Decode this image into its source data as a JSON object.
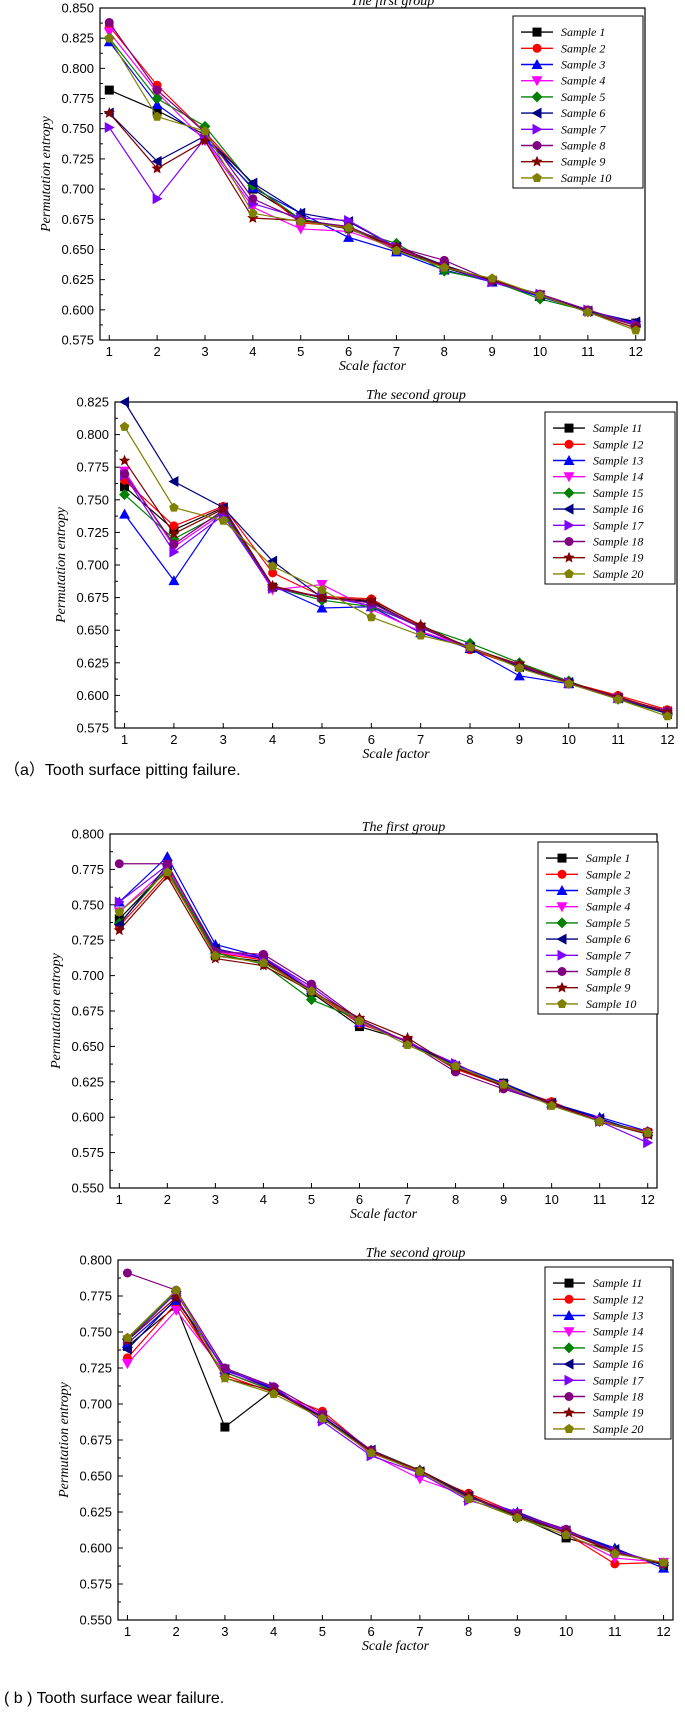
{
  "captions": {
    "a": "（a）Tooth surface pitting failure.",
    "b": "( b ) Tooth surface wear failure."
  },
  "series_colors": [
    "#000000",
    "#ff0000",
    "#0000ff",
    "#ff00ff",
    "#008000",
    "#000080",
    "#8000ff",
    "#800080",
    "#800000",
    "#808000"
  ],
  "series_markers": [
    "square",
    "circle",
    "triangle-up",
    "triangle-down",
    "diamond",
    "triangle-left",
    "triangle-right",
    "circle",
    "star",
    "pentagon"
  ],
  "chart_data": [
    {
      "type": "line",
      "title": "The first group",
      "xlabel": "Scale factor",
      "ylabel": "Permutation entropy",
      "x": [
        1,
        2,
        3,
        4,
        5,
        6,
        7,
        8,
        9,
        10,
        11,
        12
      ],
      "ylim": [
        0.575,
        0.85
      ],
      "yticks": [
        "0.575",
        "0.600",
        "0.625",
        "0.650",
        "0.675",
        "0.700",
        "0.725",
        "0.750",
        "0.775",
        "0.800",
        "0.825",
        "0.850"
      ],
      "xticks": [
        "1",
        "2",
        "3",
        "4",
        "5",
        "6",
        "7",
        "8",
        "9",
        "10",
        "11",
        "12"
      ],
      "legend_position": "top-right",
      "series": [
        {
          "name": "Sample 1",
          "values": [
            0.782,
            0.765,
            0.745,
            0.7,
            0.675,
            0.668,
            0.65,
            0.635,
            0.623,
            0.611,
            0.599,
            0.589
          ]
        },
        {
          "name": "Sample 2",
          "values": [
            0.835,
            0.786,
            0.747,
            0.704,
            0.672,
            0.669,
            0.651,
            0.636,
            0.623,
            0.612,
            0.599,
            0.588
          ]
        },
        {
          "name": "Sample 3",
          "values": [
            0.822,
            0.77,
            0.742,
            0.701,
            0.68,
            0.66,
            0.648,
            0.633,
            0.623,
            0.611,
            0.599,
            0.589
          ]
        },
        {
          "name": "Sample 4",
          "values": [
            0.83,
            0.78,
            0.74,
            0.685,
            0.667,
            0.665,
            0.651,
            0.636,
            0.623,
            0.612,
            0.598,
            0.587
          ]
        },
        {
          "name": "Sample 5",
          "values": [
            0.825,
            0.775,
            0.752,
            0.703,
            0.675,
            0.667,
            0.655,
            0.632,
            0.624,
            0.609,
            0.599,
            0.587
          ]
        },
        {
          "name": "Sample 6",
          "values": [
            0.763,
            0.723,
            0.744,
            0.705,
            0.68,
            0.673,
            0.652,
            0.637,
            0.624,
            0.612,
            0.599,
            0.59
          ]
        },
        {
          "name": "Sample 7",
          "values": [
            0.751,
            0.692,
            0.742,
            0.688,
            0.676,
            0.674,
            0.652,
            0.636,
            0.623,
            0.613,
            0.6,
            0.588
          ]
        },
        {
          "name": "Sample 8",
          "values": [
            0.838,
            0.782,
            0.747,
            0.692,
            0.674,
            0.669,
            0.652,
            0.641,
            0.624,
            0.613,
            0.6,
            0.587
          ]
        },
        {
          "name": "Sample 9",
          "values": [
            0.763,
            0.717,
            0.74,
            0.676,
            0.674,
            0.667,
            0.652,
            0.636,
            0.625,
            0.612,
            0.598,
            0.585
          ]
        },
        {
          "name": "Sample 10",
          "values": [
            0.825,
            0.76,
            0.748,
            0.68,
            0.673,
            0.668,
            0.649,
            0.635,
            0.626,
            0.612,
            0.598,
            0.583
          ]
        }
      ]
    },
    {
      "type": "line",
      "title": "The second group",
      "xlabel": "Scale factor",
      "ylabel": "Permutation entropy",
      "x": [
        1,
        2,
        3,
        4,
        5,
        6,
        7,
        8,
        9,
        10,
        11,
        12
      ],
      "ylim": [
        0.575,
        0.825
      ],
      "yticks": [
        "0.575",
        "0.600",
        "0.625",
        "0.650",
        "0.675",
        "0.700",
        "0.725",
        "0.750",
        "0.775",
        "0.800",
        "0.825"
      ],
      "xticks": [
        "1",
        "2",
        "3",
        "4",
        "5",
        "6",
        "7",
        "8",
        "9",
        "10",
        "11",
        "12"
      ],
      "legend_position": "top-right",
      "series": [
        {
          "name": "Sample 11",
          "values": [
            0.76,
            0.727,
            0.744,
            0.683,
            0.675,
            0.672,
            0.652,
            0.636,
            0.622,
            0.609,
            0.598,
            0.588
          ]
        },
        {
          "name": "Sample 12",
          "values": [
            0.765,
            0.73,
            0.745,
            0.694,
            0.676,
            0.674,
            0.653,
            0.635,
            0.622,
            0.61,
            0.6,
            0.589
          ]
        },
        {
          "name": "Sample 13",
          "values": [
            0.739,
            0.688,
            0.744,
            0.684,
            0.667,
            0.668,
            0.648,
            0.636,
            0.615,
            0.609,
            0.598,
            0.588
          ]
        },
        {
          "name": "Sample 14",
          "values": [
            0.772,
            0.714,
            0.74,
            0.681,
            0.685,
            0.666,
            0.649,
            0.637,
            0.623,
            0.609,
            0.598,
            0.587
          ]
        },
        {
          "name": "Sample 15",
          "values": [
            0.754,
            0.72,
            0.74,
            0.683,
            0.673,
            0.668,
            0.653,
            0.64,
            0.625,
            0.611,
            0.597,
            0.586
          ]
        },
        {
          "name": "Sample 16",
          "values": [
            0.825,
            0.764,
            0.744,
            0.703,
            0.675,
            0.671,
            0.652,
            0.637,
            0.622,
            0.61,
            0.598,
            0.586
          ]
        },
        {
          "name": "Sample 17",
          "values": [
            0.769,
            0.71,
            0.738,
            0.682,
            0.676,
            0.669,
            0.652,
            0.637,
            0.623,
            0.61,
            0.598,
            0.587
          ]
        },
        {
          "name": "Sample 18",
          "values": [
            0.77,
            0.716,
            0.742,
            0.683,
            0.675,
            0.671,
            0.652,
            0.636,
            0.623,
            0.609,
            0.598,
            0.588
          ]
        },
        {
          "name": "Sample 19",
          "values": [
            0.78,
            0.724,
            0.743,
            0.684,
            0.675,
            0.673,
            0.654,
            0.636,
            0.624,
            0.61,
            0.599,
            0.587
          ]
        },
        {
          "name": "Sample 20",
          "values": [
            0.806,
            0.744,
            0.734,
            0.699,
            0.681,
            0.66,
            0.646,
            0.637,
            0.621,
            0.609,
            0.597,
            0.584
          ]
        }
      ]
    },
    {
      "type": "line",
      "title": "The first group",
      "xlabel": "Scale factor",
      "ylabel": "Permutation entropy",
      "x": [
        1,
        2,
        3,
        4,
        5,
        6,
        7,
        8,
        9,
        10,
        11,
        12
      ],
      "ylim": [
        0.55,
        0.8
      ],
      "yticks": [
        "0.550",
        "0.575",
        "0.600",
        "0.625",
        "0.650",
        "0.675",
        "0.700",
        "0.725",
        "0.750",
        "0.775",
        "0.800"
      ],
      "xticks": [
        "1",
        "2",
        "3",
        "4",
        "5",
        "6",
        "7",
        "8",
        "9",
        "10",
        "11",
        "12"
      ],
      "legend_position": "top-right",
      "series": [
        {
          "name": "Sample 1",
          "values": [
            0.74,
            0.775,
            0.714,
            0.71,
            0.688,
            0.664,
            0.654,
            0.634,
            0.624,
            0.61,
            0.598,
            0.589
          ]
        },
        {
          "name": "Sample 2",
          "values": [
            0.735,
            0.772,
            0.716,
            0.711,
            0.689,
            0.666,
            0.654,
            0.634,
            0.622,
            0.611,
            0.597,
            0.59
          ]
        },
        {
          "name": "Sample 3",
          "values": [
            0.752,
            0.784,
            0.722,
            0.713,
            0.69,
            0.667,
            0.653,
            0.637,
            0.624,
            0.61,
            0.6,
            0.59
          ]
        },
        {
          "name": "Sample 4",
          "values": [
            0.745,
            0.776,
            0.717,
            0.712,
            0.69,
            0.667,
            0.653,
            0.635,
            0.623,
            0.609,
            0.598,
            0.588
          ]
        },
        {
          "name": "Sample 5",
          "values": [
            0.737,
            0.775,
            0.716,
            0.708,
            0.683,
            0.669,
            0.653,
            0.635,
            0.623,
            0.609,
            0.597,
            0.589
          ]
        },
        {
          "name": "Sample 6",
          "values": [
            0.736,
            0.778,
            0.719,
            0.712,
            0.689,
            0.668,
            0.653,
            0.636,
            0.623,
            0.61,
            0.599,
            0.588
          ]
        },
        {
          "name": "Sample 7",
          "values": [
            0.752,
            0.778,
            0.718,
            0.713,
            0.692,
            0.668,
            0.653,
            0.638,
            0.621,
            0.609,
            0.597,
            0.582
          ]
        },
        {
          "name": "Sample 8",
          "values": [
            0.779,
            0.779,
            0.717,
            0.715,
            0.694,
            0.669,
            0.653,
            0.632,
            0.62,
            0.609,
            0.597,
            0.588
          ]
        },
        {
          "name": "Sample 9",
          "values": [
            0.732,
            0.77,
            0.712,
            0.707,
            0.689,
            0.67,
            0.656,
            0.635,
            0.622,
            0.61,
            0.597,
            0.588
          ]
        },
        {
          "name": "Sample 10",
          "values": [
            0.745,
            0.773,
            0.714,
            0.709,
            0.689,
            0.668,
            0.651,
            0.636,
            0.623,
            0.608,
            0.597,
            0.589
          ]
        }
      ]
    },
    {
      "type": "line",
      "title": "The second group",
      "xlabel": "Scale factor",
      "ylabel": "Permutation entropy",
      "x": [
        1,
        2,
        3,
        4,
        5,
        6,
        7,
        8,
        9,
        10,
        11,
        12
      ],
      "ylim": [
        0.55,
        0.8
      ],
      "yticks": [
        "0.550",
        "0.575",
        "0.600",
        "0.625",
        "0.650",
        "0.675",
        "0.700",
        "0.725",
        "0.750",
        "0.775",
        "0.800"
      ],
      "xticks": [
        "1",
        "2",
        "3",
        "4",
        "5",
        "6",
        "7",
        "8",
        "9",
        "10",
        "11",
        "12"
      ],
      "legend_position": "top-right",
      "series": [
        {
          "name": "Sample 11",
          "values": [
            0.74,
            0.768,
            0.684,
            0.71,
            0.69,
            0.666,
            0.653,
            0.636,
            0.622,
            0.607,
            0.598,
            0.589
          ]
        },
        {
          "name": "Sample 12",
          "values": [
            0.732,
            0.77,
            0.72,
            0.708,
            0.695,
            0.667,
            0.652,
            0.638,
            0.624,
            0.61,
            0.589,
            0.59
          ]
        },
        {
          "name": "Sample 13",
          "values": [
            0.742,
            0.772,
            0.724,
            0.711,
            0.69,
            0.668,
            0.654,
            0.635,
            0.625,
            0.612,
            0.6,
            0.586
          ]
        },
        {
          "name": "Sample 14",
          "values": [
            0.728,
            0.765,
            0.722,
            0.71,
            0.692,
            0.665,
            0.648,
            0.636,
            0.624,
            0.61,
            0.593,
            0.59
          ]
        },
        {
          "name": "Sample 15",
          "values": [
            0.745,
            0.778,
            0.722,
            0.709,
            0.691,
            0.668,
            0.654,
            0.636,
            0.621,
            0.611,
            0.598,
            0.588
          ]
        },
        {
          "name": "Sample 16",
          "values": [
            0.738,
            0.773,
            0.724,
            0.71,
            0.691,
            0.668,
            0.653,
            0.636,
            0.623,
            0.612,
            0.599,
            0.588
          ]
        },
        {
          "name": "Sample 17",
          "values": [
            0.744,
            0.777,
            0.723,
            0.712,
            0.688,
            0.664,
            0.652,
            0.633,
            0.624,
            0.612,
            0.598,
            0.589
          ]
        },
        {
          "name": "Sample 18",
          "values": [
            0.791,
            0.779,
            0.725,
            0.712,
            0.693,
            0.668,
            0.653,
            0.635,
            0.624,
            0.613,
            0.597,
            0.589
          ]
        },
        {
          "name": "Sample 19",
          "values": [
            0.744,
            0.774,
            0.718,
            0.709,
            0.69,
            0.667,
            0.654,
            0.637,
            0.622,
            0.611,
            0.597,
            0.589
          ]
        },
        {
          "name": "Sample 20",
          "values": [
            0.746,
            0.779,
            0.718,
            0.707,
            0.69,
            0.666,
            0.653,
            0.634,
            0.621,
            0.609,
            0.596,
            0.59
          ]
        }
      ]
    }
  ]
}
